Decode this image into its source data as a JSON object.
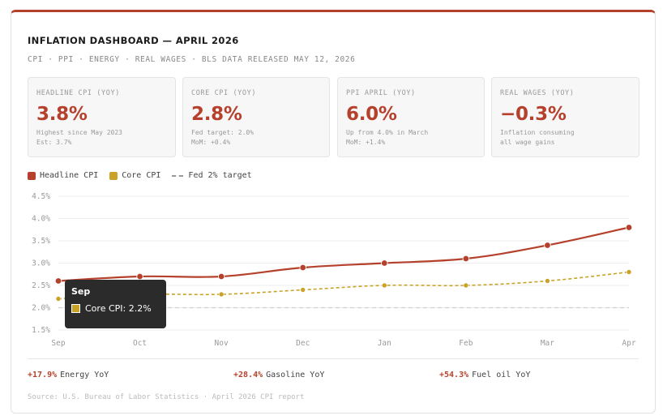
{
  "header": {
    "title": "INFLATION DASHBOARD — APRIL 2026",
    "subtitle": "CPI · PPI · ENERGY · REAL WAGES · BLS DATA RELEASED MAY 12, 2026"
  },
  "kpis": [
    {
      "label": "HEADLINE CPI (YOY)",
      "value": "3.8%",
      "note1": "Highest since May 2023",
      "note2": "Est: 3.7%"
    },
    {
      "label": "CORE CPI (YOY)",
      "value": "2.8%",
      "note1": "Fed target: 2.0%",
      "note2": "MoM: +0.4%"
    },
    {
      "label": "PPI APRIL (YOY)",
      "value": "6.0%",
      "note1": "Up from 4.0% in March",
      "note2": "MoM: +1.4%"
    },
    {
      "label": "REAL WAGES (YOY)",
      "value": "−0.3%",
      "note1": "Inflation consuming",
      "note2": "all wage gains"
    }
  ],
  "colors": {
    "accent": "#b5412c",
    "headline": "#b5412c",
    "core": "#c9a227",
    "target": "#999999"
  },
  "chart_data": {
    "type": "line",
    "categories": [
      "Sep",
      "Oct",
      "Nov",
      "Dec",
      "Jan",
      "Feb",
      "Mar",
      "Apr"
    ],
    "series": [
      {
        "name": "Headline CPI",
        "values": [
          2.6,
          2.7,
          2.7,
          2.9,
          3.0,
          3.1,
          3.4,
          3.8
        ],
        "style": "solid"
      },
      {
        "name": "Core CPI",
        "values": [
          2.2,
          2.3,
          2.3,
          2.4,
          2.5,
          2.5,
          2.6,
          2.8
        ],
        "style": "dashed"
      }
    ],
    "reference_line": {
      "name": "Fed 2% target",
      "value": 2.0
    },
    "yticks": [
      "4.5%",
      "4.0%",
      "3.5%",
      "3.0%",
      "2.5%",
      "2.0%",
      "1.5%"
    ],
    "ylim": [
      1.5,
      4.5
    ],
    "grid": "horizontal",
    "legend_position": "top-left",
    "tooltip": {
      "title": "Sep",
      "label": "Core CPI: 2.2%"
    }
  },
  "stats": [
    {
      "delta": "+17.9%",
      "label": "Energy YoY"
    },
    {
      "delta": "+28.4%",
      "label": "Gasoline YoY"
    },
    {
      "delta": "+54.3%",
      "label": "Fuel oil YoY"
    }
  ],
  "source": "Source: U.S. Bureau of Labor Statistics · April 2026 CPI report"
}
